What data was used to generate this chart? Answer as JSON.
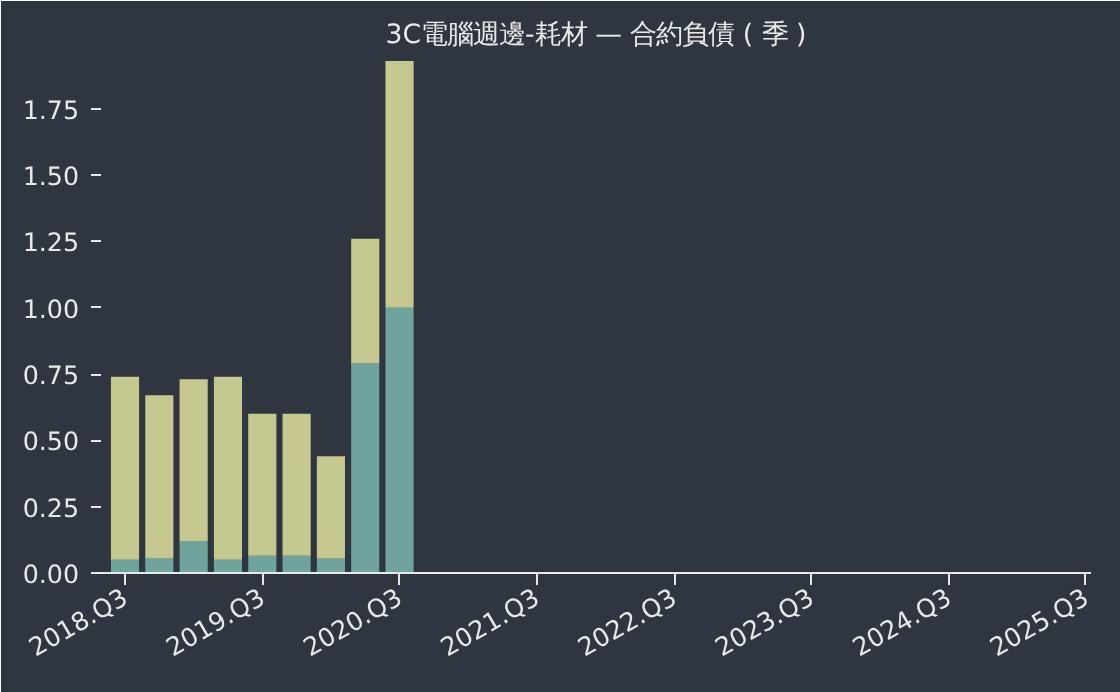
{
  "chart_data": {
    "type": "bar",
    "title": "3C電腦週邊-耗材 — 合約負債 ( 季 )",
    "stacked": true,
    "categories": [
      "2018.Q3",
      null,
      null,
      null,
      "2019.Q3",
      null,
      null,
      null,
      "2020.Q3",
      null,
      null,
      null,
      "2021.Q3",
      null,
      null,
      null,
      "2022.Q3",
      null,
      null,
      null,
      "2023.Q3",
      null,
      null,
      null,
      "2024.Q3",
      null,
      null,
      null,
      "2025.Q3"
    ],
    "series": [
      {
        "color": "#6fa39e",
        "values": [
          0.05,
          0.055,
          0.12,
          0.05,
          0.065,
          0.065,
          0.055,
          0.79,
          1.0,
          null,
          null,
          null,
          null,
          null,
          null,
          null,
          null,
          null,
          null,
          null,
          null,
          null,
          null,
          null,
          null,
          null,
          null,
          null,
          null
        ]
      },
      {
        "color": "#c5c98f",
        "values": [
          0.69,
          0.615,
          0.61,
          0.69,
          0.535,
          0.535,
          0.385,
          0.47,
          0.93,
          null,
          null,
          null,
          null,
          null,
          null,
          null,
          null,
          null,
          null,
          null,
          null,
          null,
          null,
          null,
          null,
          null,
          null,
          null,
          null
        ]
      }
    ],
    "ylim": [
      0,
      1.93
    ],
    "yticks": [
      {
        "value": 0,
        "label": "0.00"
      },
      {
        "value": 0.25,
        "label": "0.25"
      },
      {
        "value": 0.5,
        "label": "0.50"
      },
      {
        "value": 0.75,
        "label": "0.75"
      },
      {
        "value": 1.0,
        "label": "1.00"
      },
      {
        "value": 1.25,
        "label": "1.25"
      },
      {
        "value": 1.5,
        "label": "1.50"
      },
      {
        "value": 1.75,
        "label": "1.75"
      }
    ],
    "grid": false
  }
}
